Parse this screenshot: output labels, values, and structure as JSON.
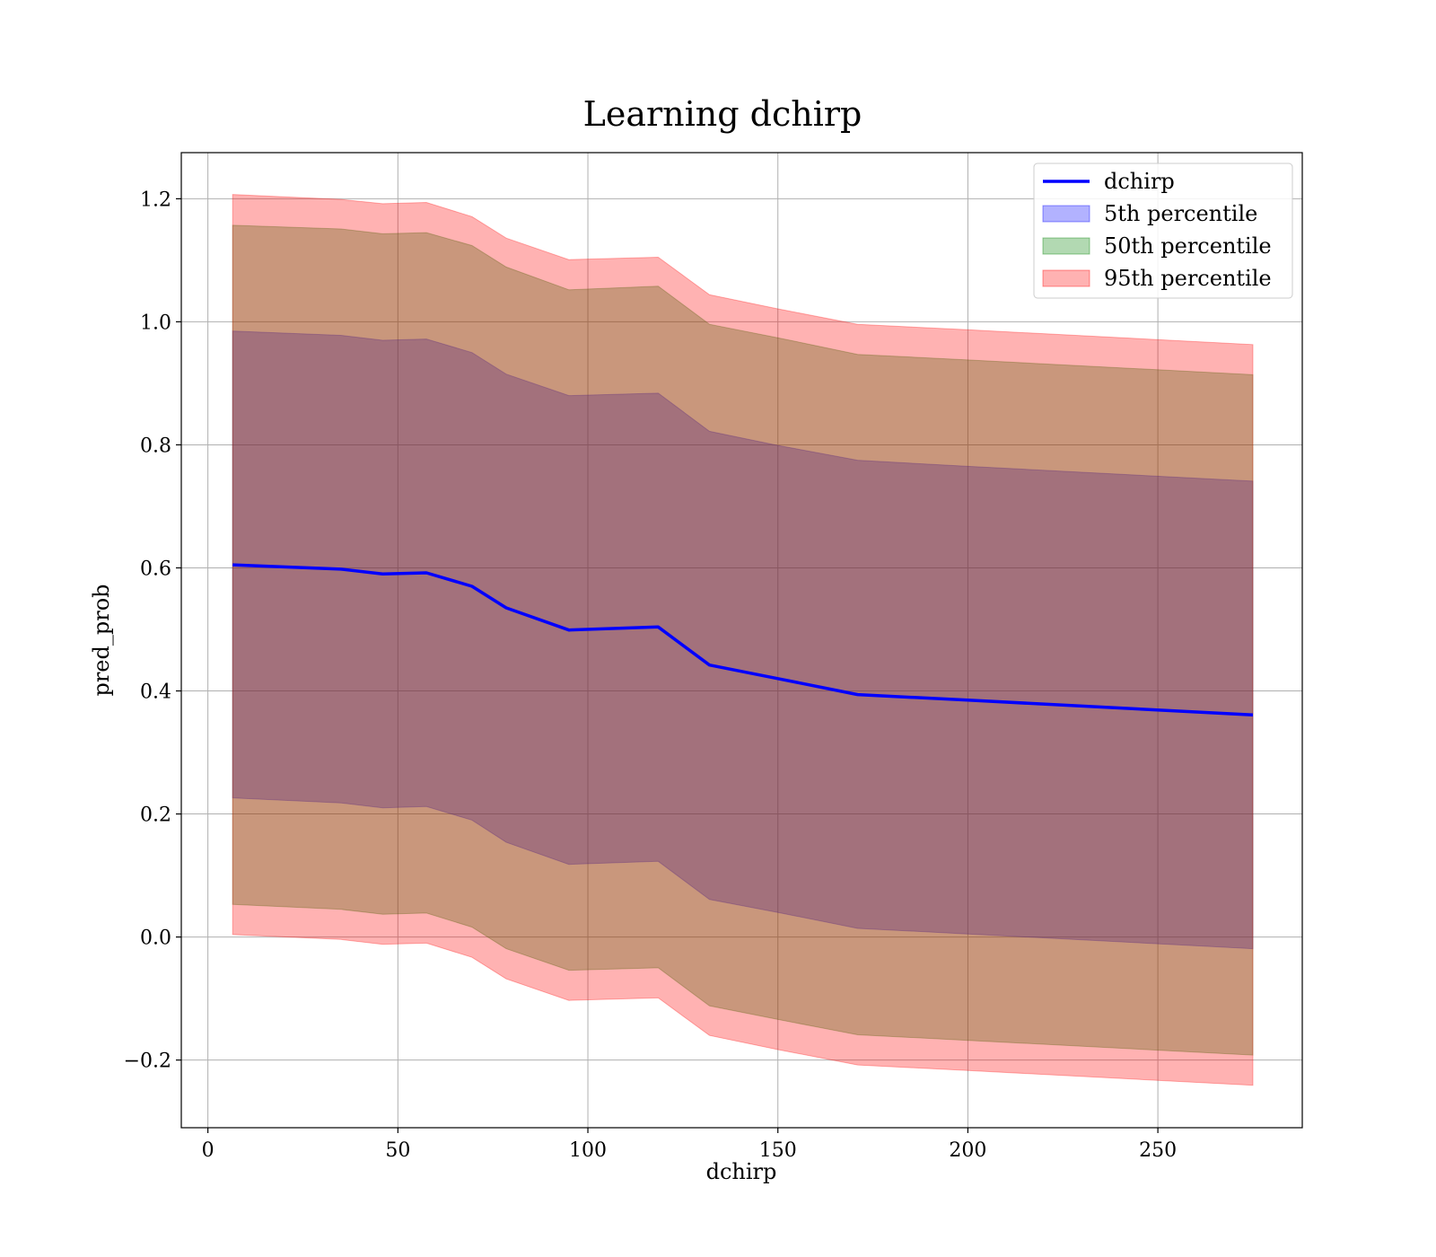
{
  "chart_data": {
    "type": "area",
    "title": "Learning dchirp",
    "xlabel": "dchirp",
    "ylabel": "pred_prob",
    "xlim": [
      -7,
      288
    ],
    "ylim": [
      -0.31,
      1.275
    ],
    "xticks": [
      0,
      50,
      100,
      150,
      200,
      250
    ],
    "xtick_labels": [
      "0",
      "50",
      "100",
      "150",
      "200",
      "250"
    ],
    "yticks": [
      -0.2,
      0.0,
      0.2,
      0.4,
      0.6,
      0.8,
      1.0,
      1.2
    ],
    "ytick_labels": [
      "−0.2",
      "0.0",
      "0.2",
      "0.4",
      "0.6",
      "0.8",
      "1.0",
      "1.2"
    ],
    "grid": true,
    "legend_position": "top-right",
    "x": [
      6.5,
      35,
      46,
      57.5,
      69.5,
      78.5,
      95,
      118.5,
      132,
      150,
      171,
      200,
      275
    ],
    "line": {
      "name": "dchirp",
      "color": "#0000ff",
      "values": [
        0.605,
        0.598,
        0.59,
        0.592,
        0.57,
        0.535,
        0.499,
        0.504,
        0.442,
        0.42,
        0.394,
        0.385,
        0.361
      ]
    },
    "bands": [
      {
        "name": "5th percentile",
        "color": "#0000ff",
        "opacity": 0.3,
        "lower": [
          0.226,
          0.218,
          0.21,
          0.212,
          0.19,
          0.154,
          0.118,
          0.123,
          0.061,
          0.04,
          0.014,
          0.005,
          -0.019
        ],
        "upper": [
          0.985,
          0.978,
          0.97,
          0.972,
          0.95,
          0.915,
          0.88,
          0.884,
          0.822,
          0.799,
          0.775,
          0.765,
          0.741
        ]
      },
      {
        "name": "50th percentile",
        "color": "#008000",
        "opacity": 0.3,
        "lower": [
          0.053,
          0.045,
          0.037,
          0.039,
          0.016,
          -0.019,
          -0.054,
          -0.05,
          -0.112,
          -0.134,
          -0.159,
          -0.168,
          -0.192
        ]
      },
      {
        "name": "95th percentile",
        "color": "#ff0000",
        "opacity": 0.3,
        "lower": [
          0.004,
          -0.004,
          -0.012,
          -0.01,
          -0.033,
          -0.068,
          -0.103,
          -0.099,
          -0.16,
          -0.183,
          -0.208,
          -0.217,
          -0.241
        ],
        "upper": [
          1.207,
          1.199,
          1.192,
          1.194,
          1.171,
          1.136,
          1.101,
          1.105,
          1.044,
          1.021,
          0.996,
          0.987,
          0.963
        ]
      }
    ]
  }
}
